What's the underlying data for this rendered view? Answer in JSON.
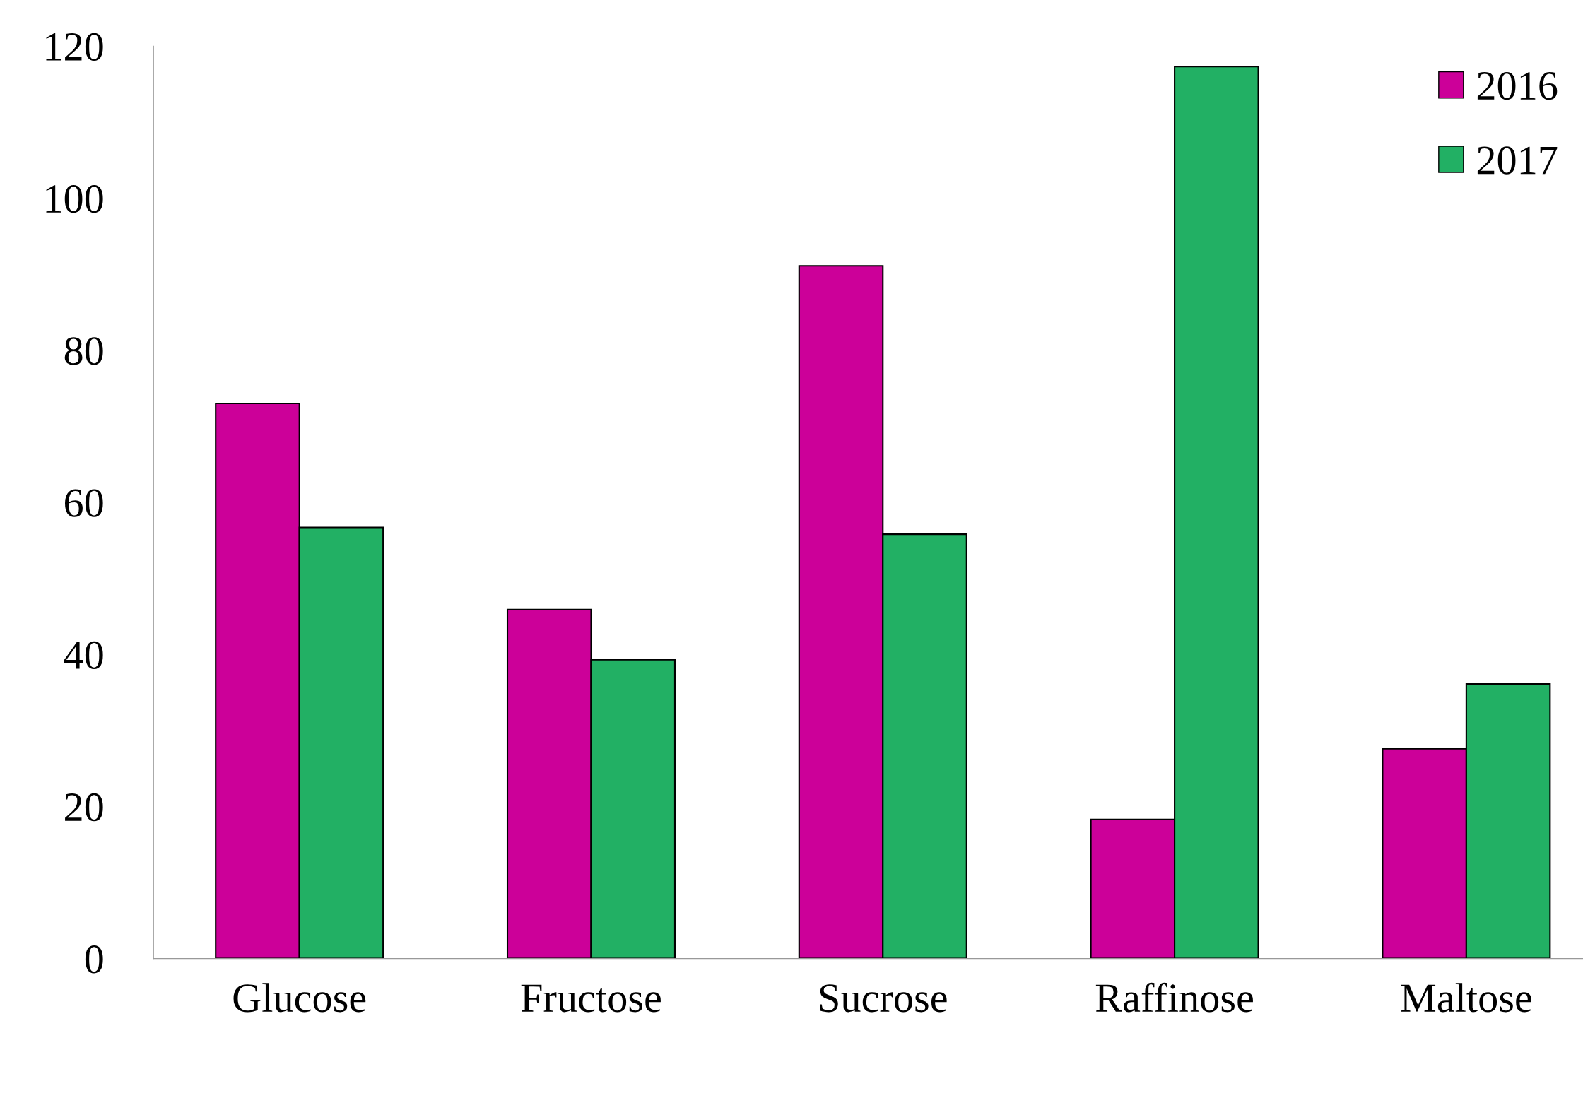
{
  "chart_data": {
    "type": "bar",
    "categories": [
      "Glucose",
      "Fructose",
      "Sucrose",
      "Raffinose",
      "Maltose"
    ],
    "series": [
      {
        "name": "2016",
        "color": "#cc0099",
        "values": [
          73.0,
          45.9,
          91.1,
          18.3,
          27.6
        ]
      },
      {
        "name": "2017",
        "color": "#22b064",
        "values": [
          56.7,
          39.3,
          55.8,
          117.3,
          36.1
        ]
      }
    ],
    "ylim": [
      0,
      120
    ],
    "yticks": [
      0,
      20,
      40,
      60,
      80,
      100,
      120
    ],
    "grid": false,
    "legend": "top right"
  }
}
